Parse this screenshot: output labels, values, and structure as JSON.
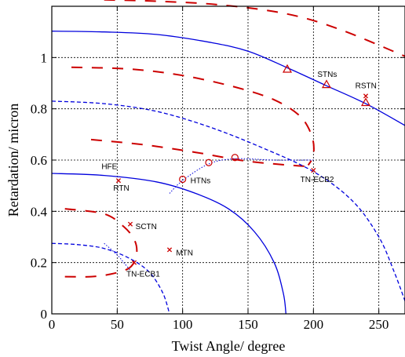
{
  "chart_data": {
    "type": "line",
    "title": "",
    "xlabel": "Twist Angle/ degree",
    "ylabel": "Retardation/ micron",
    "xlim": [
      0,
      270
    ],
    "ylim": [
      0,
      1.2
    ],
    "xticks": [
      0,
      50,
      100,
      150,
      200,
      250
    ],
    "yticks": [
      0,
      0.2,
      0.4,
      0.6,
      0.8,
      1
    ],
    "xtick_labels": [
      "0",
      "50",
      "100",
      "150",
      "200",
      "250"
    ],
    "ytick_labels": [
      "0",
      "0.2",
      "0.4",
      "0.6",
      "0.8",
      "1"
    ],
    "grid": true,
    "colors": {
      "blue": "#0000dd",
      "red": "#cc0000",
      "axes": "#000000",
      "grid": "#000000"
    },
    "blue_solid_curves": [
      {
        "points": [
          [
            0,
            1.103
          ],
          [
            40,
            1.1
          ],
          [
            80,
            1.09
          ],
          [
            120,
            1.06
          ],
          [
            150,
            1.025
          ],
          [
            180,
            0.96
          ],
          [
            210,
            0.89
          ],
          [
            240,
            0.82
          ],
          [
            270,
            0.735
          ]
        ]
      },
      {
        "points": [
          [
            0,
            0.548
          ],
          [
            40,
            0.54
          ],
          [
            80,
            0.515
          ],
          [
            110,
            0.47
          ],
          [
            135,
            0.41
          ],
          [
            155,
            0.32
          ],
          [
            170,
            0.2
          ],
          [
            177,
            0.08
          ],
          [
            179,
            0
          ]
        ]
      }
    ],
    "blue_dashed_curves": [
      {
        "points": [
          [
            0,
            0.83
          ],
          [
            40,
            0.82
          ],
          [
            80,
            0.79
          ],
          [
            120,
            0.73
          ],
          [
            160,
            0.65
          ],
          [
            200,
            0.555
          ],
          [
            230,
            0.44
          ],
          [
            250,
            0.3
          ],
          [
            262,
            0.16
          ],
          [
            270,
            0.05
          ]
        ]
      },
      {
        "points": [
          [
            0,
            0.275
          ],
          [
            20,
            0.27
          ],
          [
            40,
            0.255
          ],
          [
            60,
            0.215
          ],
          [
            75,
            0.16
          ],
          [
            85,
            0.08
          ],
          [
            90,
            0
          ]
        ]
      }
    ],
    "blue_dotted_segments": [
      {
        "points": [
          [
            40,
            0.275
          ],
          [
            50,
            0.23
          ],
          [
            55,
            0.2
          ],
          [
            60,
            0.17
          ]
        ]
      },
      {
        "points": [
          [
            90,
            0.47
          ],
          [
            100,
            0.52
          ],
          [
            120,
            0.585
          ],
          [
            140,
            0.605
          ],
          [
            170,
            0.6
          ],
          [
            200,
            0.6
          ]
        ]
      }
    ],
    "red_dashed_curves": [
      {
        "points": [
          [
            40,
            1.225
          ],
          [
            80,
            1.22
          ],
          [
            130,
            1.205
          ],
          [
            180,
            1.17
          ],
          [
            220,
            1.11
          ],
          [
            270,
            1.005
          ]
        ]
      },
      {
        "points": [
          [
            15,
            0.962
          ],
          [
            60,
            0.955
          ],
          [
            100,
            0.93
          ],
          [
            140,
            0.885
          ],
          [
            170,
            0.835
          ],
          [
            190,
            0.77
          ],
          [
            199,
            0.69
          ],
          [
            200,
            0.62
          ],
          [
            196,
            0.58
          ]
        ]
      },
      {
        "points": [
          [
            30,
            0.68
          ],
          [
            70,
            0.66
          ],
          [
            110,
            0.63
          ],
          [
            150,
            0.595
          ],
          [
            195,
            0.575
          ]
        ]
      },
      {
        "points": [
          [
            10,
            0.41
          ],
          [
            40,
            0.39
          ],
          [
            55,
            0.34
          ],
          [
            63,
            0.29
          ],
          [
            65,
            0.24
          ],
          [
            62,
            0.2
          ]
        ]
      },
      {
        "points": [
          [
            10,
            0.145
          ],
          [
            30,
            0.145
          ],
          [
            45,
            0.155
          ],
          [
            58,
            0.175
          ],
          [
            63,
            0.2
          ]
        ]
      }
    ],
    "circle_markers": [
      [
        100,
        0.525
      ],
      [
        120,
        0.59
      ],
      [
        140,
        0.61
      ]
    ],
    "triangle_markers": [
      [
        180,
        0.955
      ],
      [
        210,
        0.895
      ],
      [
        240,
        0.825
      ]
    ],
    "cross_markers": [
      [
        240,
        0.85
      ],
      [
        51,
        0.52
      ],
      [
        60,
        0.35
      ],
      [
        90,
        0.25
      ],
      [
        63,
        0.2
      ],
      [
        200,
        0.56
      ]
    ],
    "annotations": [
      {
        "text": "STNs",
        "x": 203,
        "y": 0.925
      },
      {
        "text": "RSTN",
        "x": 232,
        "y": 0.88
      },
      {
        "text": "HFE",
        "x": 38,
        "y": 0.565
      },
      {
        "text": "RTN",
        "x": 47,
        "y": 0.48
      },
      {
        "text": "HTNs",
        "x": 106,
        "y": 0.51
      },
      {
        "text": "TN-ECB2",
        "x": 190,
        "y": 0.515
      },
      {
        "text": "SCTN",
        "x": 64,
        "y": 0.33
      },
      {
        "text": "MTN",
        "x": 95,
        "y": 0.228
      },
      {
        "text": "TN-ECB1",
        "x": 57,
        "y": 0.145
      }
    ]
  }
}
